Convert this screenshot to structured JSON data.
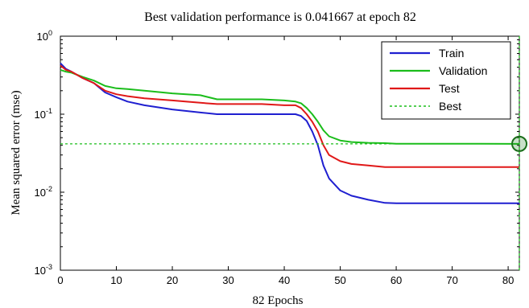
{
  "chart_data": {
    "type": "line",
    "title": "Best validation  performance is 0.041667 at epoch 82",
    "xlabel": "82 Epochs",
    "ylabel": "Mean squared error  (mse)",
    "yscale": "log",
    "xlim": [
      0,
      82
    ],
    "ylim": [
      0.001,
      1
    ],
    "x_ticks": [
      "0",
      "10",
      "20",
      "30",
      "40",
      "50",
      "60",
      "70",
      "80"
    ],
    "y_ticks": [
      {
        "base": "10",
        "exp": "0",
        "value": 1
      },
      {
        "base": "10",
        "exp": "-1",
        "value": 0.1
      },
      {
        "base": "10",
        "exp": "-2",
        "value": 0.01
      },
      {
        "base": "10",
        "exp": "-3",
        "value": 0.001
      }
    ],
    "legend_position": "top-right",
    "series": [
      {
        "name": "Train",
        "color": "#1f1fd0",
        "x": [
          0,
          1,
          2,
          4,
          6,
          8,
          10,
          12,
          15,
          20,
          25,
          28,
          32,
          36,
          40,
          42,
          43,
          44,
          45,
          46,
          47,
          48,
          50,
          52,
          55,
          58,
          60,
          65,
          70,
          75,
          82
        ],
        "y": [
          0.45,
          0.38,
          0.35,
          0.29,
          0.25,
          0.19,
          0.165,
          0.145,
          0.13,
          0.115,
          0.105,
          0.1,
          0.1,
          0.1,
          0.1,
          0.1,
          0.095,
          0.082,
          0.06,
          0.04,
          0.022,
          0.015,
          0.0105,
          0.009,
          0.008,
          0.0073,
          0.0072,
          0.0072,
          0.0072,
          0.0072,
          0.0072
        ]
      },
      {
        "name": "Validation",
        "color": "#1bbd1b",
        "x": [
          0,
          1,
          2,
          4,
          6,
          8,
          10,
          12,
          15,
          20,
          25,
          28,
          32,
          36,
          40,
          42,
          43,
          44,
          45,
          46,
          47,
          48,
          50,
          52,
          55,
          58,
          60,
          65,
          70,
          75,
          82
        ],
        "y": [
          0.37,
          0.35,
          0.34,
          0.3,
          0.27,
          0.23,
          0.215,
          0.21,
          0.2,
          0.185,
          0.175,
          0.155,
          0.155,
          0.155,
          0.15,
          0.145,
          0.138,
          0.12,
          0.1,
          0.08,
          0.062,
          0.052,
          0.046,
          0.044,
          0.043,
          0.0425,
          0.0418,
          0.0417,
          0.0417,
          0.0417,
          0.041667
        ]
      },
      {
        "name": "Test",
        "color": "#e01818",
        "x": [
          0,
          1,
          2,
          4,
          6,
          8,
          10,
          12,
          15,
          20,
          25,
          28,
          32,
          36,
          40,
          42,
          43,
          44,
          45,
          46,
          47,
          48,
          50,
          52,
          55,
          58,
          60,
          65,
          70,
          75,
          82
        ],
        "y": [
          0.42,
          0.37,
          0.35,
          0.29,
          0.25,
          0.2,
          0.18,
          0.17,
          0.16,
          0.15,
          0.14,
          0.135,
          0.135,
          0.135,
          0.13,
          0.13,
          0.12,
          0.1,
          0.08,
          0.06,
          0.04,
          0.03,
          0.025,
          0.023,
          0.022,
          0.021,
          0.021,
          0.021,
          0.021,
          0.021,
          0.021
        ]
      }
    ],
    "best": {
      "name": "Best",
      "color": "#1bbd1b",
      "epoch": 82,
      "value": 0.041667
    }
  }
}
